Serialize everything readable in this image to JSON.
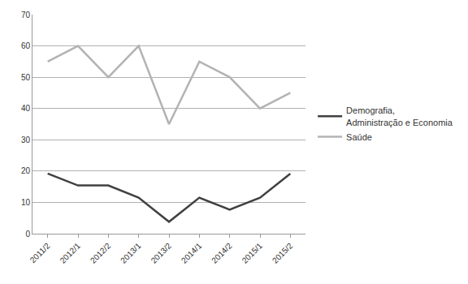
{
  "chart_data": {
    "type": "line",
    "categories": [
      "2011/2",
      "2012/1",
      "2012/2",
      "2013/1",
      "2013/2",
      "2014/1",
      "2014/2",
      "2015/1",
      "2015/2"
    ],
    "series": [
      {
        "name": "Demografia, Administração e Economia",
        "color": "#404040",
        "values": [
          19.2,
          15.4,
          15.4,
          11.5,
          3.8,
          11.5,
          7.7,
          11.5,
          19.2
        ]
      },
      {
        "name": "Saúde",
        "color": "#b3b3b3",
        "values": [
          55,
          60,
          50,
          60,
          35,
          55,
          50,
          40,
          45
        ]
      }
    ],
    "ylim": [
      0,
      70
    ],
    "yticks": [
      0,
      10,
      20,
      30,
      40,
      50,
      60,
      70
    ],
    "grid": true,
    "legend": "right"
  }
}
